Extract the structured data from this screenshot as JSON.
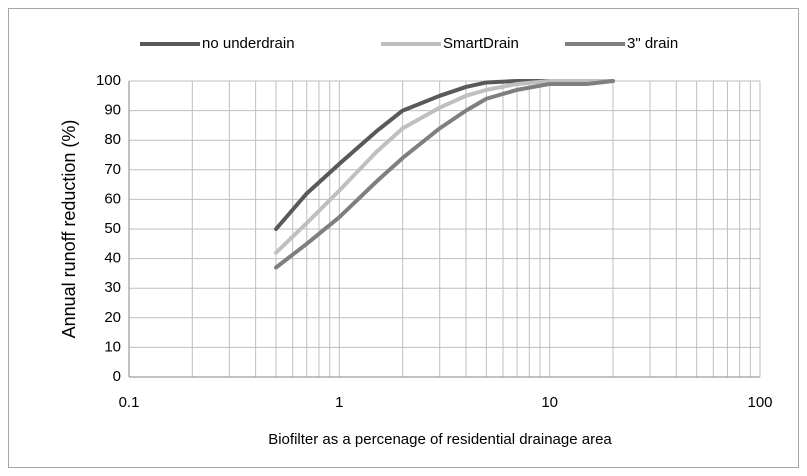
{
  "chart_data": {
    "type": "line",
    "x_label": "Biofilter as a percenage of residential drainage area",
    "y_label": "Annual runoff reduction (%)",
    "x": [
      0.5,
      0.7,
      1,
      1.5,
      2,
      3,
      4,
      5,
      7,
      10,
      15,
      20
    ],
    "series": [
      {
        "name": "no underdrain",
        "color": "#595959",
        "values": [
          50,
          62,
          72,
          83,
          90,
          95,
          98,
          99.5,
          100,
          100,
          100,
          100
        ]
      },
      {
        "name": "SmartDrain",
        "color": "#bfbfbf",
        "values": [
          42,
          52,
          63,
          76,
          84,
          91,
          95,
          97,
          99,
          100,
          100,
          100
        ]
      },
      {
        "name": "3\" drain",
        "color": "#7f7f7f",
        "values": [
          37,
          45,
          54,
          66,
          74,
          84,
          90,
          94,
          97,
          99,
          99,
          100
        ]
      }
    ],
    "xlim": [
      0.1,
      100
    ],
    "xticks": [
      0.1,
      1,
      10,
      100
    ],
    "x_log": true,
    "ylim": [
      0,
      100
    ],
    "yticks": [
      0,
      10,
      20,
      30,
      40,
      50,
      60,
      70,
      80,
      90,
      100
    ],
    "grid": true,
    "legend": "top"
  }
}
